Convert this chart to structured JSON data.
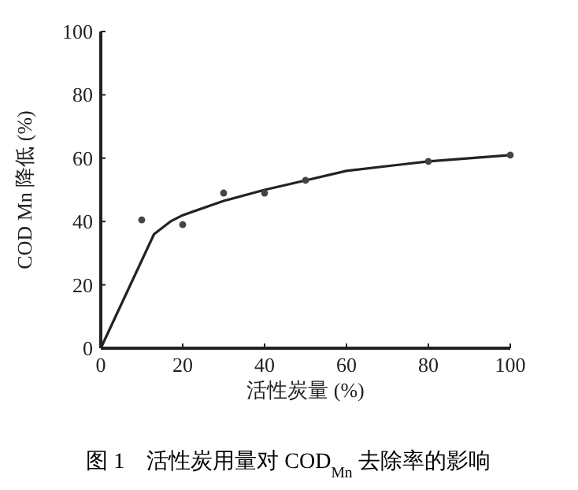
{
  "chart_data": {
    "type": "scatter",
    "xlabel": "活性炭量 (%)",
    "ylabel": "COD Mn 降低 (%)",
    "annotations": [
      "图 1　活性炭用量对 COD$_{Mn}$ 去除率的影响"
    ],
    "xlim": [
      0,
      100
    ],
    "xticks": [
      0,
      20,
      40,
      60,
      80,
      100
    ],
    "ylim": [
      0,
      100
    ],
    "yticks": [
      0,
      20,
      40,
      60,
      80,
      100
    ],
    "grid": false,
    "series": [
      {
        "marker": "circle",
        "color": "#444444",
        "x": [
          10,
          20,
          30,
          40,
          50,
          80,
          100
        ],
        "values": [
          40.5,
          39,
          49,
          49,
          53,
          59,
          61
        ]
      },
      {
        "type": "line",
        "marker": "none",
        "color": "#222222",
        "x": [
          0,
          13,
          17,
          20,
          30,
          40,
          50,
          60,
          80,
          100
        ],
        "values": [
          0,
          36,
          40,
          42,
          46.5,
          50,
          53,
          56,
          59,
          61
        ]
      }
    ]
  }
}
